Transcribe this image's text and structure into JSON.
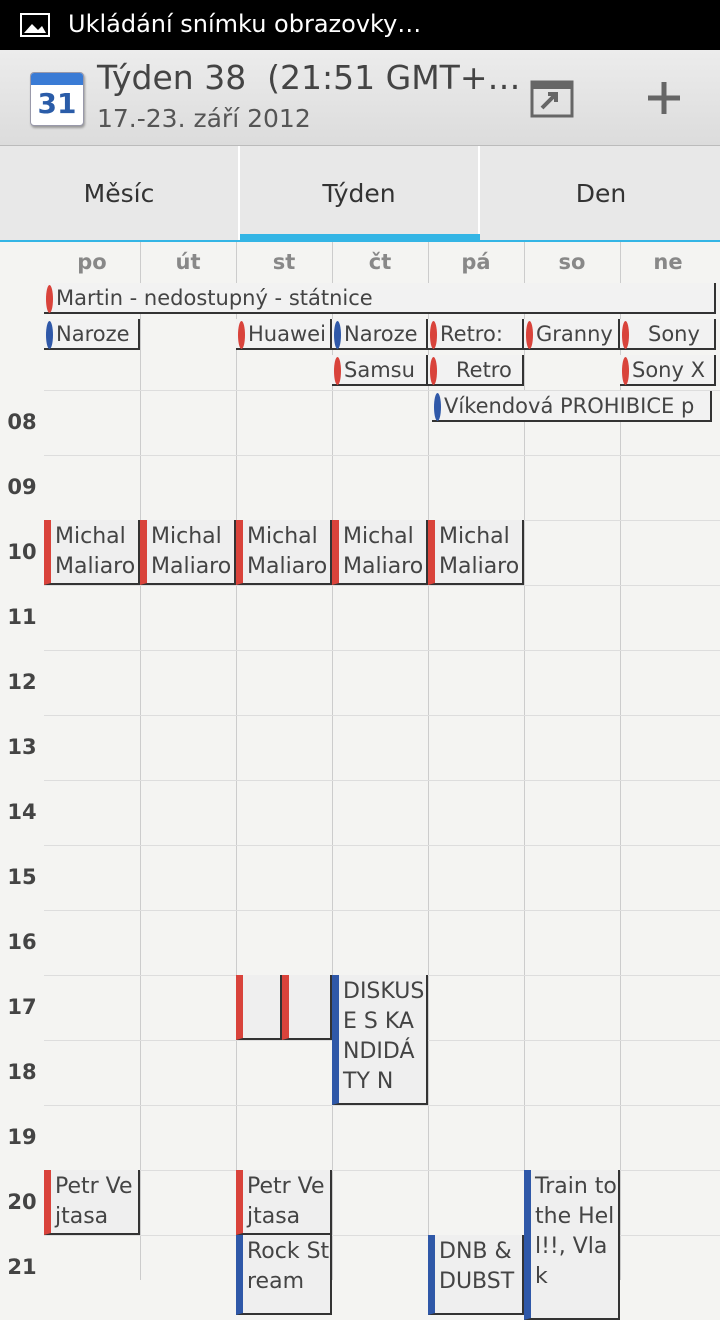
{
  "status_bar": {
    "text": "Ukládání snímku obrazovky…"
  },
  "action_bar": {
    "icon_day": "31",
    "title": "Týden 38  (21:51 GMT+…",
    "subtitle": "17.-23. září 2012"
  },
  "tabs": [
    "Měsíc",
    "Týden",
    "Den"
  ],
  "days": [
    "po",
    "út",
    "st",
    "čt",
    "pá",
    "so",
    "ne"
  ],
  "all_day_events": [
    "Martin - nedostupný - státnice",
    "Naroze",
    "Huawei",
    "Naroze",
    "Retro:",
    "Granny",
    "Sony",
    "Samsu",
    "Retro",
    "Sony X",
    "Víkendová PROHIBICE p"
  ],
  "hours": [
    "08",
    "09",
    "10",
    "11",
    "12",
    "13",
    "14",
    "15",
    "16",
    "17",
    "18",
    "19",
    "20",
    "21"
  ],
  "events": [
    "Michal Maliaro",
    "Michal Maliaro",
    "Michal Maliaro",
    "Michal Maliaro",
    "Michal Maliaro",
    "DISKUSE S KANDIDÁTY N",
    "Petr Vejtasa",
    "Petr Vejtasa",
    "Rock Stream",
    "DNB & DUBST",
    "Train to the Hell!!, Vlak"
  ]
}
